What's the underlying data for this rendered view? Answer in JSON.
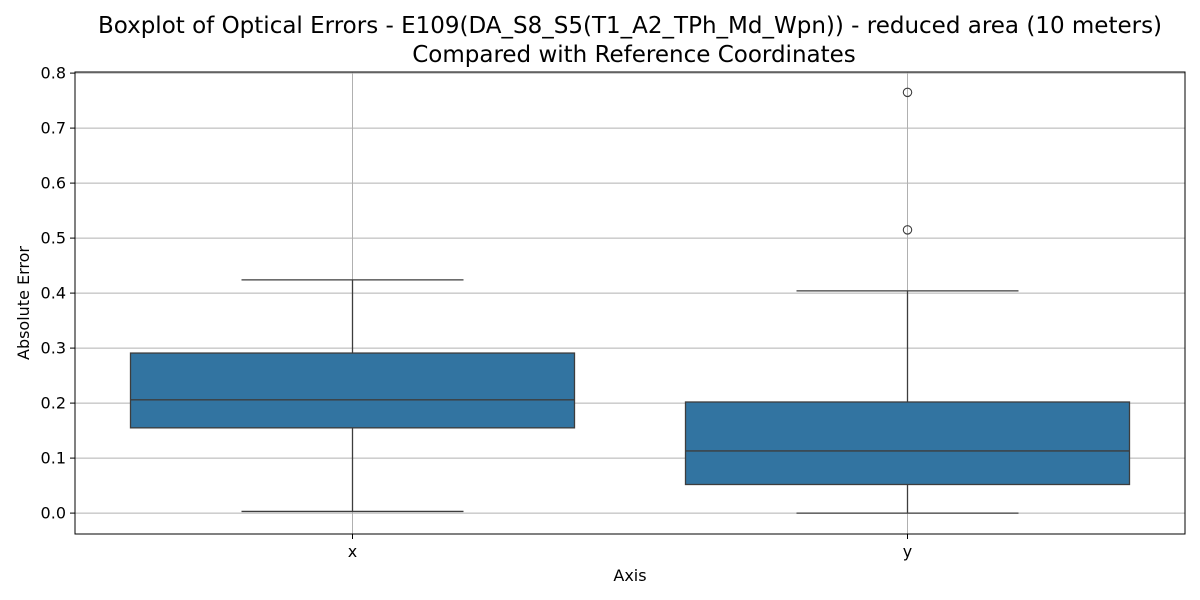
{
  "chart_data": {
    "type": "boxplot",
    "title_line1": "Boxplot of Optical Errors - E109(DA_S8_S5(T1_A2_TPh_Md_Wpn)) - reduced area (10 meters)",
    "title_line2": "Compared with Reference Coordinates",
    "xlabel": "Axis",
    "ylabel": "Absolute Error",
    "categories": [
      "x",
      "y"
    ],
    "ylim": [
      -0.038,
      0.802
    ],
    "yticks": [
      0.0,
      0.1,
      0.2,
      0.3,
      0.4,
      0.5,
      0.6,
      0.7,
      0.8
    ],
    "ytick_labels": [
      "0.0",
      "0.1",
      "0.2",
      "0.3",
      "0.4",
      "0.5",
      "0.6",
      "0.7",
      "0.8"
    ],
    "grid": true,
    "box_color": "#3274a1",
    "line_color": "#3d3d3d",
    "boxes": [
      {
        "category": "x",
        "whisker_low": 0.003,
        "q1": 0.155,
        "median": 0.206,
        "q3": 0.291,
        "whisker_high": 0.424,
        "outliers": []
      },
      {
        "category": "y",
        "whisker_low": 0.0,
        "q1": 0.052,
        "median": 0.113,
        "q3": 0.202,
        "whisker_high": 0.404,
        "outliers": [
          0.515,
          0.765
        ]
      }
    ]
  }
}
